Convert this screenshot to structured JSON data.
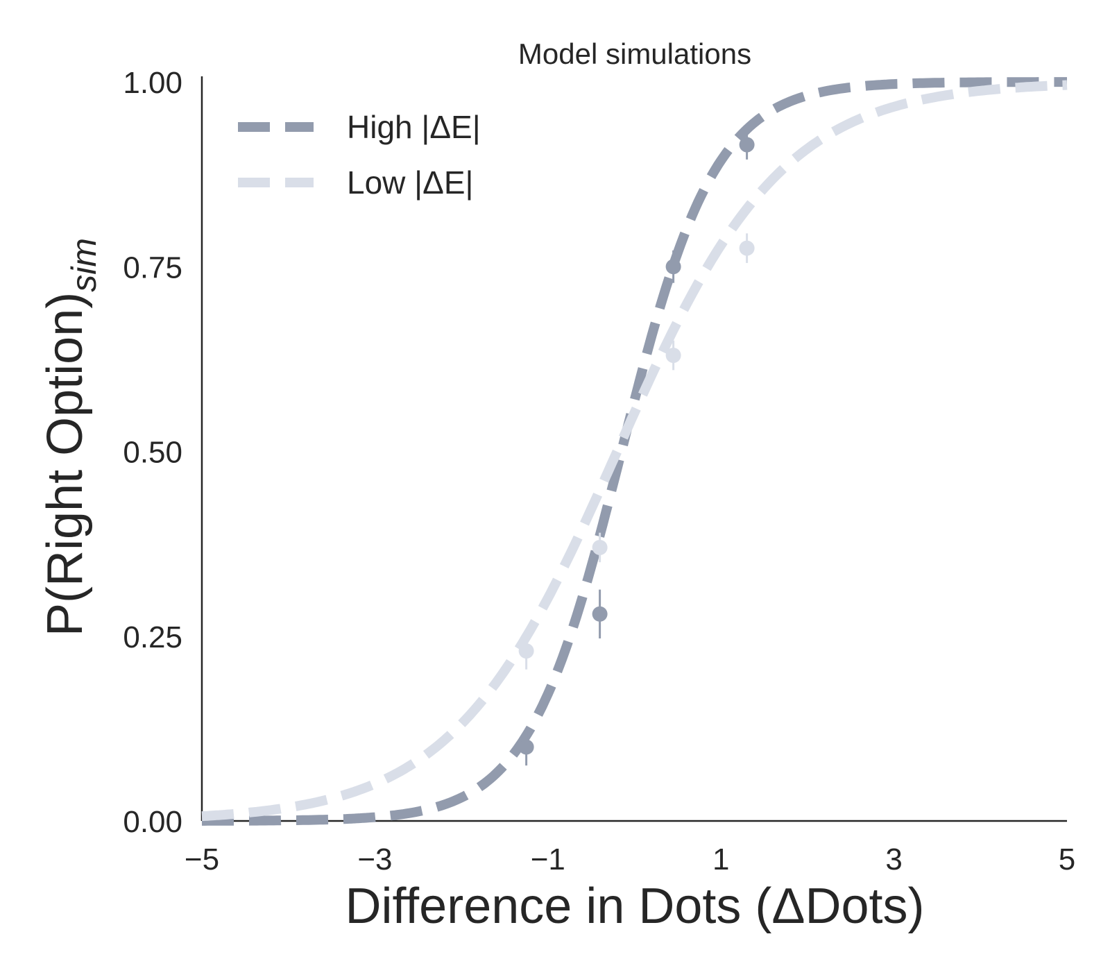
{
  "chart_data": {
    "type": "line",
    "title": "Model simulations",
    "xlabel": "Difference in Dots (ΔDots)",
    "ylabel_main": "P(Right Option)",
    "ylabel_sub": "sim",
    "xlim": [
      -5,
      5
    ],
    "ylim": [
      0,
      1
    ],
    "xticks": [
      -5,
      -3,
      -1,
      1,
      3,
      5
    ],
    "xtick_labels": [
      "−5",
      "−3",
      "−1",
      "1",
      "3",
      "5"
    ],
    "yticks": [
      0,
      0.25,
      0.5,
      0.75,
      1.0
    ],
    "ytick_labels": [
      "0.00",
      "0.25",
      "0.50",
      "0.75",
      "1.00"
    ],
    "legend_position": "top-left",
    "grid": false,
    "series": [
      {
        "name": "High |ΔE|",
        "color": "#929bad",
        "line_style": "dashed",
        "curve": {
          "x0": -0.15,
          "slope": 1.85
        },
        "points": [
          {
            "x": -1.25,
            "y": 0.1,
            "err": 0.025
          },
          {
            "x": -0.4,
            "y": 0.28,
            "err": 0.033
          },
          {
            "x": 0.45,
            "y": 0.75,
            "err": 0.022
          },
          {
            "x": 1.3,
            "y": 0.915,
            "err": 0.02
          }
        ]
      },
      {
        "name": "Low |ΔE|",
        "color": "#d9dee8",
        "line_style": "dashed",
        "curve": {
          "x0": -0.2,
          "slope": 1.05
        },
        "points": [
          {
            "x": -1.25,
            "y": 0.23,
            "err": 0.025
          },
          {
            "x": -0.4,
            "y": 0.37,
            "err": 0.02
          },
          {
            "x": 0.45,
            "y": 0.63,
            "err": 0.02
          },
          {
            "x": 1.3,
            "y": 0.775,
            "err": 0.02
          }
        ]
      }
    ]
  }
}
